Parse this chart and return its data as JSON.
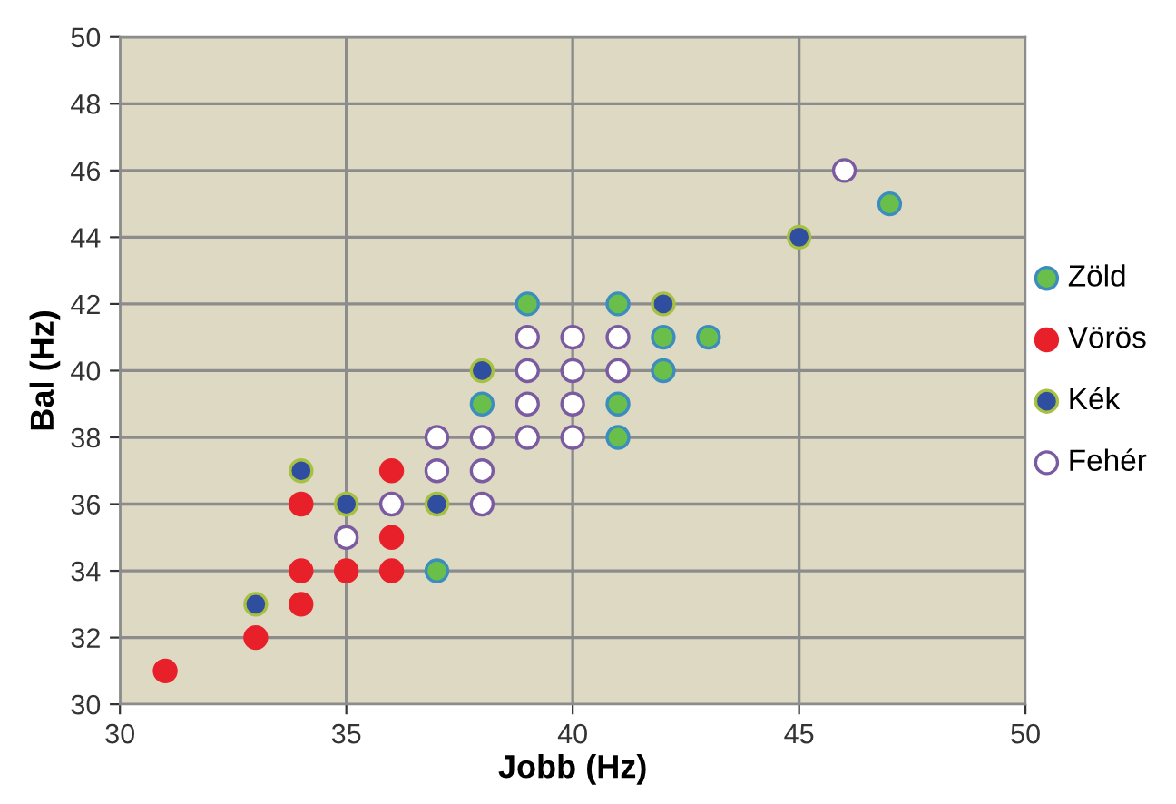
{
  "chart_data": {
    "type": "scatter",
    "xlabel": "Jobb (Hz)",
    "ylabel": "Bal (Hz)",
    "xlim": [
      30,
      50
    ],
    "xticks": [
      30,
      35,
      40,
      45,
      50
    ],
    "ylim": [
      30,
      50
    ],
    "yticks": [
      30,
      32,
      34,
      36,
      38,
      40,
      42,
      44,
      46,
      48,
      50
    ],
    "grid": true,
    "legend": "right",
    "marker": "circle",
    "series": [
      {
        "name": "Zöld",
        "color": "#6abf4b",
        "x": [
          37,
          38,
          41,
          41,
          42,
          39,
          41,
          42,
          43,
          47
        ],
        "values": [
          34,
          39,
          38,
          39,
          40,
          42,
          42,
          41,
          41,
          45
        ]
      },
      {
        "name": "Vörös",
        "color": "#e8202a",
        "x": [
          31,
          33,
          34,
          34,
          35,
          36,
          36,
          34,
          36
        ],
        "values": [
          31,
          32,
          33,
          34,
          34,
          34,
          35,
          36,
          37
        ]
      },
      {
        "name": "Kék",
        "color": "#2f4ea0",
        "x": [
          33,
          34,
          35,
          37,
          38,
          42,
          45
        ],
        "values": [
          33,
          37,
          36,
          36,
          40,
          42,
          44
        ]
      },
      {
        "name": "Fehér",
        "color": "#ffffff",
        "x": [
          35,
          36,
          38,
          37,
          38,
          37,
          38,
          39,
          40,
          39,
          40,
          39,
          40,
          41,
          39,
          40,
          41,
          46
        ],
        "values": [
          35,
          36,
          36,
          37,
          37,
          38,
          38,
          38,
          38,
          39,
          39,
          40,
          40,
          40,
          41,
          41,
          41,
          46
        ]
      }
    ]
  }
}
